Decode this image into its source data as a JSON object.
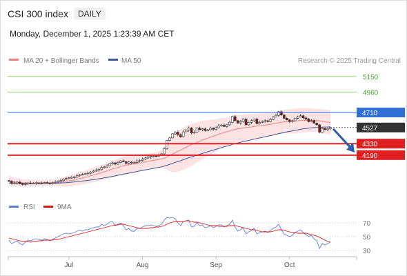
{
  "header": {
    "title": "CSI 300 index",
    "timeframe": "DAILY",
    "datetime": "Monday, December 1, 2025 1:23:39 AM CET"
  },
  "legend": {
    "ma20_label": "MA 20 + Bollinger Bands",
    "ma50_label": "MA 50",
    "credit": "Research © 2025 Trading Central"
  },
  "colors": {
    "up_candle": "#ffffff",
    "down_candle": "#7a1a1a",
    "ma20": "#f08080",
    "bands": "#fbd9d9",
    "ma50": "#3a5a9a",
    "resistance": "#8fcf6f",
    "pivot": "#2f6fd6",
    "support": "#e02020",
    "price": "#333333",
    "rsi": "#5b7fd6",
    "rsi_ma": "#dd1111"
  },
  "chart_data": [
    {
      "type": "candlestick",
      "ylim": [
        3700,
        5300
      ],
      "x_ticks": [
        "Jul",
        "Aug",
        "Sep",
        "Oct"
      ],
      "levels": [
        {
          "label": "5150",
          "value": 5150,
          "kind": "resistance"
        },
        {
          "label": "4960",
          "value": 4960,
          "kind": "resistance"
        },
        {
          "label": "4710",
          "value": 4710,
          "kind": "pivot"
        },
        {
          "label": "4527",
          "value": 4527,
          "kind": "last-price"
        },
        {
          "label": "4330",
          "value": 4330,
          "kind": "support"
        },
        {
          "label": "4190",
          "value": 4190,
          "kind": "support"
        }
      ],
      "forecast_target": 4190,
      "close": [
        3870,
        3845,
        3850,
        3860,
        3840,
        3835,
        3840,
        3850,
        3845,
        3848,
        3852,
        3850,
        3848,
        3855,
        3850,
        3846,
        3852,
        3860,
        3870,
        3880,
        3895,
        3905,
        3912,
        3918,
        3925,
        3940,
        3950,
        3955,
        3965,
        3970,
        3985,
        3995,
        4005,
        4015,
        4040,
        4045,
        4060,
        4085,
        4095,
        4080,
        4100,
        4120,
        4110,
        4090,
        4105,
        4095,
        4098,
        4120,
        4125,
        4140,
        4155,
        4165,
        4175,
        4180,
        4178,
        4190,
        4205,
        4270,
        4370,
        4400,
        4450,
        4470,
        4440,
        4415,
        4475,
        4495,
        4520,
        4460,
        4470,
        4520,
        4500,
        4510,
        4490,
        4500,
        4520,
        4505,
        4525,
        4545,
        4555,
        4540,
        4560,
        4590,
        4660,
        4610,
        4580,
        4600,
        4630,
        4560,
        4590,
        4610,
        4630,
        4575,
        4590,
        4600,
        4610,
        4600,
        4625,
        4655,
        4675,
        4720,
        4680,
        4640,
        4620,
        4600,
        4610,
        4640,
        4655,
        4670,
        4645,
        4630,
        4600,
        4610,
        4580,
        4560,
        4470,
        4515,
        4500,
        4510,
        4527
      ],
      "ma20": [
        3880,
        3870,
        3862,
        3858,
        3855,
        3852,
        3850,
        3850,
        3848,
        3849,
        3850,
        3851,
        3851,
        3852,
        3852,
        3852,
        3853,
        3855,
        3858,
        3861,
        3865,
        3870,
        3876,
        3882,
        3889,
        3897,
        3905,
        3913,
        3921,
        3929,
        3938,
        3947,
        3956,
        3965,
        3976,
        3986,
        3997,
        4010,
        4021,
        4030,
        4040,
        4051,
        4060,
        4066,
        4073,
        4079,
        4084,
        4090,
        4096,
        4102,
        4108,
        4114,
        4120,
        4126,
        4131,
        4137,
        4143,
        4153,
        4168,
        4184,
        4202,
        4220,
        4236,
        4251,
        4268,
        4285,
        4302,
        4316,
        4330,
        4346,
        4360,
        4374,
        4386,
        4397,
        4410,
        4420,
        4432,
        4445,
        4457,
        4466,
        4475,
        4485,
        4497,
        4505,
        4510,
        4516,
        4522,
        4526,
        4530,
        4534,
        4540,
        4544,
        4548,
        4552,
        4557,
        4561,
        4566,
        4572,
        4579,
        4587,
        4592,
        4596,
        4599,
        4601,
        4603,
        4606,
        4609,
        4613,
        4615,
        4616,
        4617,
        4618,
        4617,
        4615,
        4608,
        4603,
        4597,
        4592,
        4587
      ],
      "ma50": [
        3850,
        3850,
        3849,
        3848,
        3847,
        3846,
        3845,
        3845,
        3844,
        3844,
        3844,
        3844,
        3844,
        3845,
        3845,
        3845,
        3846,
        3847,
        3848,
        3850,
        3852,
        3854,
        3857,
        3860,
        3863,
        3866,
        3870,
        3874,
        3878,
        3882,
        3886,
        3891,
        3896,
        3901,
        3906,
        3912,
        3918,
        3924,
        3931,
        3937,
        3944,
        3951,
        3958,
        3964,
        3970,
        3977,
        3983,
        3990,
        3996,
        4002,
        4009,
        4015,
        4021,
        4028,
        4034,
        4041,
        4048,
        4056,
        4066,
        4077,
        4089,
        4101,
        4112,
        4122,
        4134,
        4146,
        4158,
        4168,
        4178,
        4190,
        4200,
        4211,
        4221,
        4231,
        4242,
        4251,
        4261,
        4272,
        4282,
        4291,
        4300,
        4310,
        4321,
        4330,
        4338,
        4346,
        4355,
        4362,
        4369,
        4377,
        4385,
        4392,
        4399,
        4406,
        4414,
        4421,
        4428,
        4436,
        4444,
        4453,
        4460,
        4467,
        4474,
        4480,
        4486,
        4492,
        4498,
        4505,
        4510,
        4515,
        4519,
        4523,
        4526,
        4528,
        4529,
        4531,
        4533,
        4534,
        4535
      ],
      "bb_width": [
        60,
        58,
        55,
        52,
        50,
        48,
        45,
        44,
        42,
        40,
        38,
        36,
        35,
        35,
        36,
        38,
        40,
        42,
        45,
        50,
        55,
        60,
        65,
        70,
        72,
        75,
        78,
        80,
        82,
        84,
        86,
        88,
        90,
        92,
        95,
        98,
        100,
        102,
        104,
        106,
        108,
        110,
        112,
        112,
        112,
        110,
        108,
        105,
        102,
        100,
        98,
        96,
        95,
        95,
        96,
        100,
        110,
        130,
        160,
        190,
        220,
        240,
        250,
        255,
        258,
        260,
        258,
        255,
        250,
        245,
        240,
        235,
        228,
        220,
        212,
        205,
        198,
        190,
        185,
        180,
        178,
        176,
        175,
        172,
        170,
        168,
        165,
        162,
        160,
        158,
        155,
        152,
        150,
        148,
        146,
        144,
        142,
        140,
        140,
        142,
        144,
        146,
        147,
        148,
        149,
        150,
        150,
        150,
        150,
        148,
        145,
        142,
        140,
        140,
        142,
        145,
        148,
        150,
        152
      ]
    },
    {
      "type": "line",
      "name": "RSI",
      "series_labels": [
        "RSI",
        "9MA"
      ],
      "ylim": [
        20,
        80
      ],
      "y_ticks": [
        70,
        50,
        30
      ],
      "rsi": [
        45,
        40,
        42,
        44,
        40,
        38,
        42,
        45,
        44,
        46,
        47,
        46,
        45,
        47,
        46,
        44,
        46,
        48,
        50,
        52,
        54,
        55,
        54,
        55,
        56,
        58,
        59,
        58,
        60,
        60,
        62,
        63,
        64,
        64,
        68,
        66,
        68,
        71,
        72,
        66,
        68,
        70,
        66,
        60,
        62,
        58,
        58,
        62,
        62,
        64,
        66,
        66,
        67,
        66,
        65,
        66,
        68,
        74,
        78,
        77,
        78,
        76,
        70,
        66,
        72,
        73,
        74,
        64,
        65,
        70,
        66,
        67,
        63,
        64,
        66,
        63,
        65,
        67,
        67,
        64,
        66,
        68,
        74,
        64,
        58,
        60,
        63,
        54,
        57,
        59,
        62,
        54,
        56,
        57,
        58,
        56,
        59,
        62,
        64,
        68,
        60,
        54,
        52,
        50,
        52,
        56,
        58,
        60,
        56,
        53,
        50,
        52,
        47,
        44,
        33,
        40,
        38,
        40,
        42
      ],
      "ma9": [
        48,
        47,
        46,
        45,
        44,
        43,
        43,
        43,
        42,
        43,
        43,
        44,
        44,
        45,
        45,
        45,
        45,
        46,
        46,
        47,
        48,
        49,
        50,
        51,
        52,
        53,
        54,
        55,
        56,
        57,
        58,
        59,
        60,
        61,
        62,
        63,
        64,
        65,
        66,
        67,
        67,
        68,
        68,
        67,
        66,
        65,
        64,
        63,
        62,
        62,
        62,
        62,
        63,
        63,
        64,
        64,
        65,
        66,
        68,
        70,
        71,
        72,
        72,
        72,
        72,
        73,
        73,
        72,
        71,
        71,
        70,
        69,
        68,
        67,
        66,
        66,
        66,
        65,
        65,
        65,
        65,
        66,
        66,
        66,
        65,
        64,
        63,
        62,
        61,
        60,
        60,
        59,
        58,
        57,
        57,
        57,
        57,
        58,
        59,
        60,
        60,
        59,
        58,
        57,
        56,
        56,
        55,
        55,
        55,
        55,
        54,
        53,
        52,
        51,
        49,
        47,
        45,
        43,
        42
      ]
    }
  ]
}
